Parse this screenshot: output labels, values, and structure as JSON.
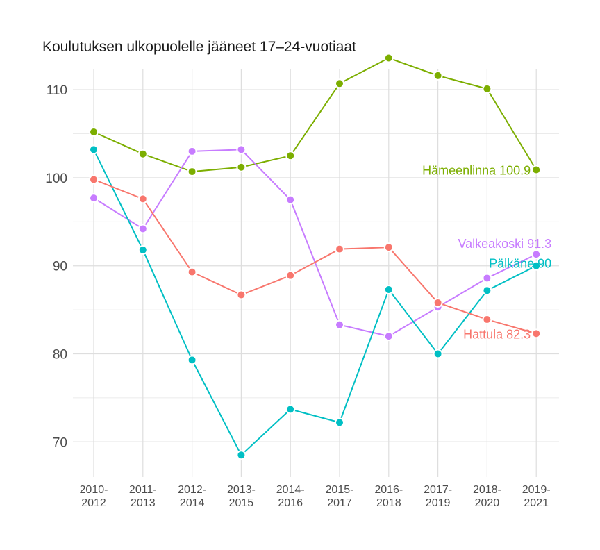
{
  "title": "Koulutuksen ulkopuolelle jääneet 17–24-vuotiaat",
  "chart_data": {
    "type": "line",
    "title": "Koulutuksen ulkopuolelle jääneet 17–24-vuotiaat",
    "xlabel": "",
    "ylabel": "",
    "categories": [
      [
        "2010-",
        "2012"
      ],
      [
        "2011-",
        "2013"
      ],
      [
        "2012-",
        "2014"
      ],
      [
        "2013-",
        "2015"
      ],
      [
        "2014-",
        "2016"
      ],
      [
        "2015-",
        "2017"
      ],
      [
        "2016-",
        "2018"
      ],
      [
        "2017-",
        "2019"
      ],
      [
        "2018-",
        "2020"
      ],
      [
        "2019-",
        "2021"
      ]
    ],
    "ylim": [
      66,
      112.3
    ],
    "yticks": [
      70,
      80,
      90,
      100,
      110
    ],
    "grid": true,
    "legend": "none (labels at line ends)",
    "series": [
      {
        "name": "Hämeenlinna",
        "end_label": "Hämeenlinna 100.9",
        "color": "#7CAE00",
        "values": [
          105.2,
          102.7,
          100.7,
          101.2,
          102.5,
          110.7,
          113.6,
          111.6,
          110.1,
          100.9
        ]
      },
      {
        "name": "Valkeakoski",
        "end_label": "Valkeakoski 91.3",
        "color": "#C77CFF",
        "values": [
          97.7,
          94.2,
          103.0,
          103.2,
          97.5,
          83.3,
          82.0,
          85.3,
          88.6,
          91.3
        ]
      },
      {
        "name": "Pälkäne",
        "end_label": "Pälkäne 90",
        "color": "#00BFC4",
        "values": [
          103.2,
          91.8,
          79.3,
          68.5,
          73.7,
          72.2,
          87.3,
          80.0,
          87.2,
          90.0
        ]
      },
      {
        "name": "Hattula",
        "end_label": "Hattula 82.3",
        "color": "#F8766D",
        "values": [
          99.8,
          97.6,
          89.3,
          86.7,
          88.9,
          91.9,
          92.1,
          85.8,
          83.9,
          82.3
        ]
      }
    ]
  }
}
